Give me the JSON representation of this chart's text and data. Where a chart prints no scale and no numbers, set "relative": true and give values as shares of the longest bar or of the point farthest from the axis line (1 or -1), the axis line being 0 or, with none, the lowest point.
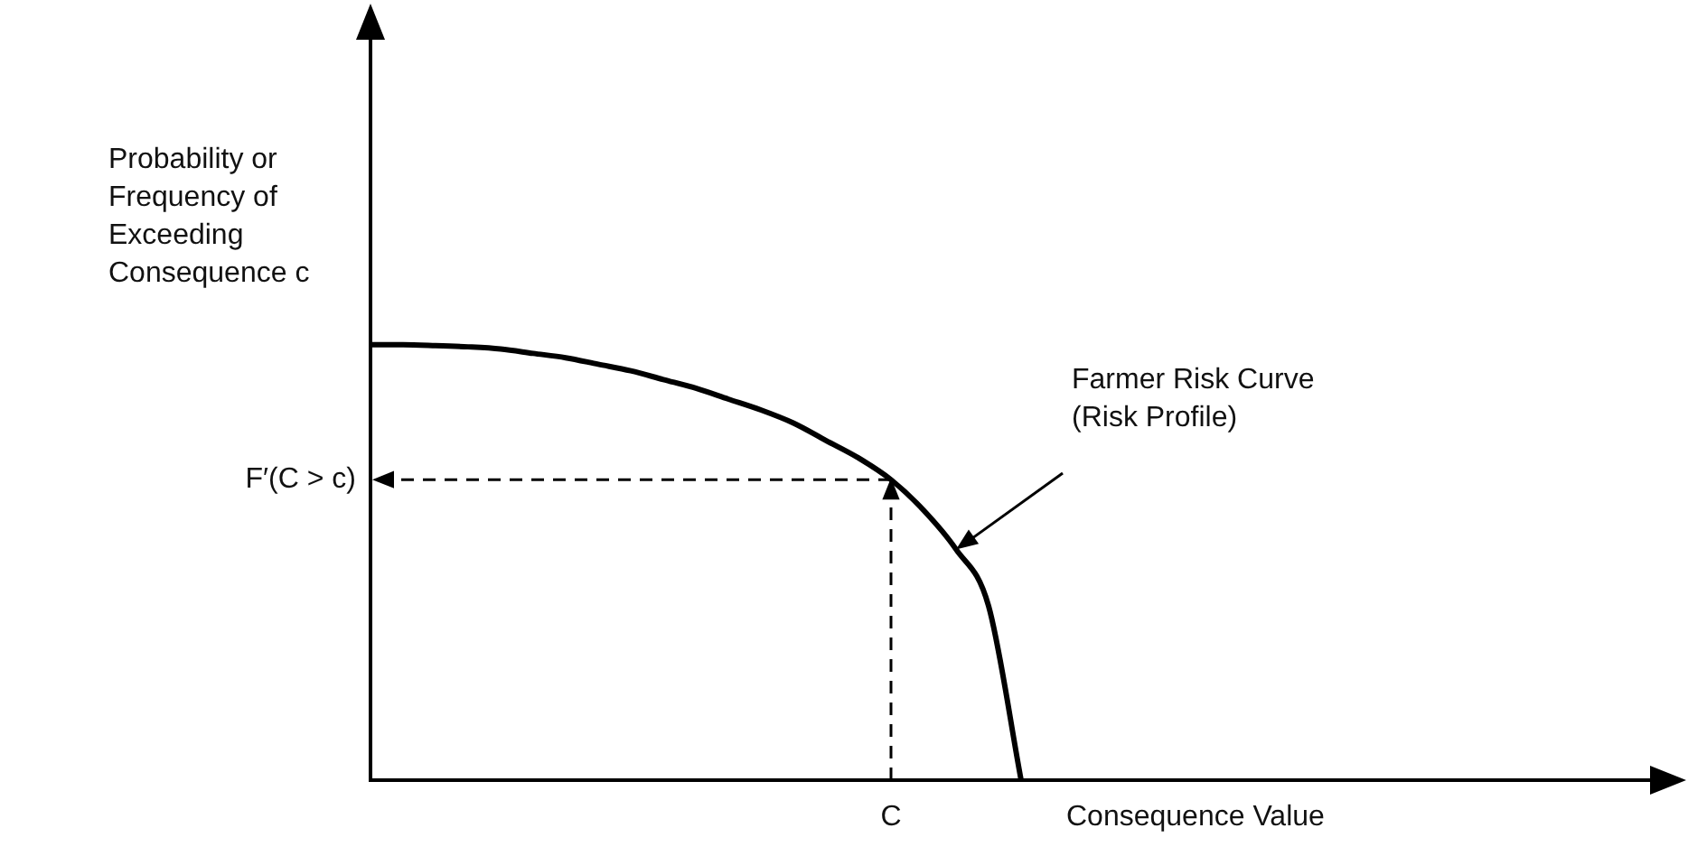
{
  "chart_data": {
    "type": "line",
    "relative": true,
    "xlabel": "Consequence Value",
    "ylabel": "Probability or\nFrequency of\nExceeding\nConsequence c",
    "categories": [
      null,
      null,
      null,
      null,
      null,
      null,
      null,
      null,
      null,
      null,
      null,
      null,
      null,
      null,
      null,
      null,
      null,
      null,
      null,
      null,
      null,
      null,
      null,
      null,
      null,
      null,
      null,
      null,
      null,
      null,
      null,
      null,
      null,
      null,
      null,
      null,
      null,
      null,
      null,
      null,
      null
    ],
    "series": [
      {
        "name": "Farmer Risk Curve (Risk Profile)",
        "color": "#000000",
        "values": [
          1,
          1,
          0.998,
          0.995,
          0.99,
          0.98,
          0.97,
          0.955,
          0.94,
          0.92,
          0.9,
          0.875,
          0.85,
          0.82,
          0.78,
          0.74,
          0.69,
          0.62,
          0.53,
          0.4,
          0,
          null,
          null,
          null,
          null,
          null,
          null,
          null,
          null,
          null,
          null,
          null,
          null,
          null,
          null,
          null,
          null,
          null,
          null,
          null,
          null
        ]
      }
    ],
    "annotations": [
      "C",
      "F′(C > c)"
    ],
    "legend": false,
    "marker": "none",
    "line_style": "solid"
  }
}
